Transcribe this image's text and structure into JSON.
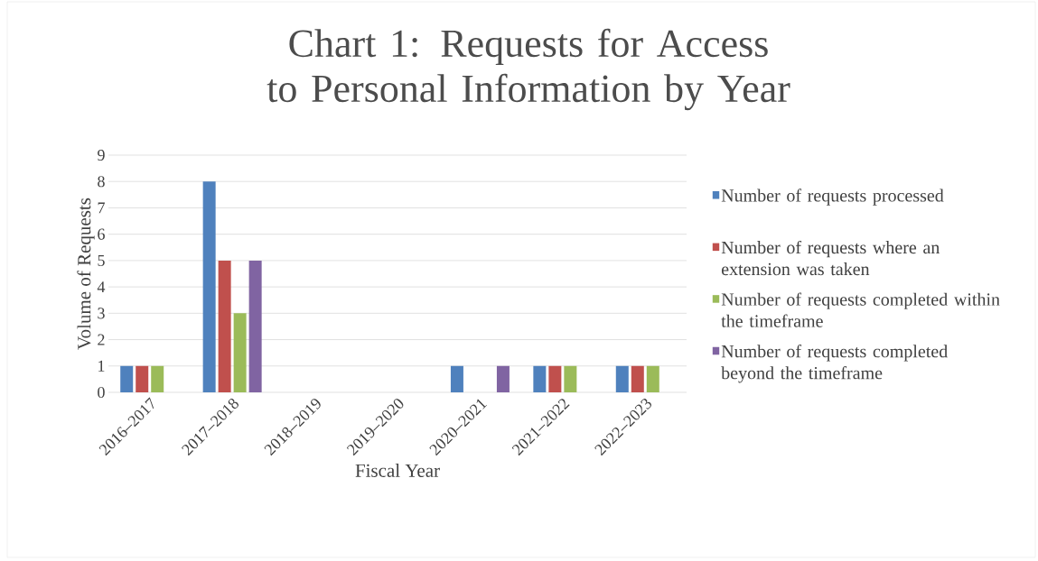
{
  "chart_data": {
    "type": "bar",
    "title": "Chart 1: Requests for Access to Personal Information by Year",
    "xlabel": "Fiscal Year",
    "ylabel": "Volume of Requests",
    "categories": [
      "2016–2017",
      "2017–2018",
      "2018–2019",
      "2019–2020",
      "2020–2021",
      "2021–2022",
      "2022–2023"
    ],
    "series": [
      {
        "name": "Number of requests processed",
        "color": "#4f81bd",
        "values": [
          1,
          8,
          0,
          0,
          1,
          1,
          1
        ]
      },
      {
        "name": "Number of requests where an extension was taken",
        "color": "#c0504d",
        "values": [
          1,
          5,
          0,
          0,
          0,
          1,
          1
        ]
      },
      {
        "name": "Number of requests completed within the timeframe",
        "color": "#9bbb59",
        "values": [
          1,
          3,
          0,
          0,
          0,
          1,
          1
        ]
      },
      {
        "name": "Number of requests completed beyond the timeframe",
        "color": "#8064a2",
        "values": [
          0,
          5,
          0,
          0,
          1,
          0,
          0
        ]
      }
    ],
    "ylim": [
      0,
      9
    ],
    "yticks": [
      0,
      1,
      2,
      3,
      4,
      5,
      6,
      7,
      8,
      9
    ],
    "grid": "y",
    "legend": "right"
  }
}
